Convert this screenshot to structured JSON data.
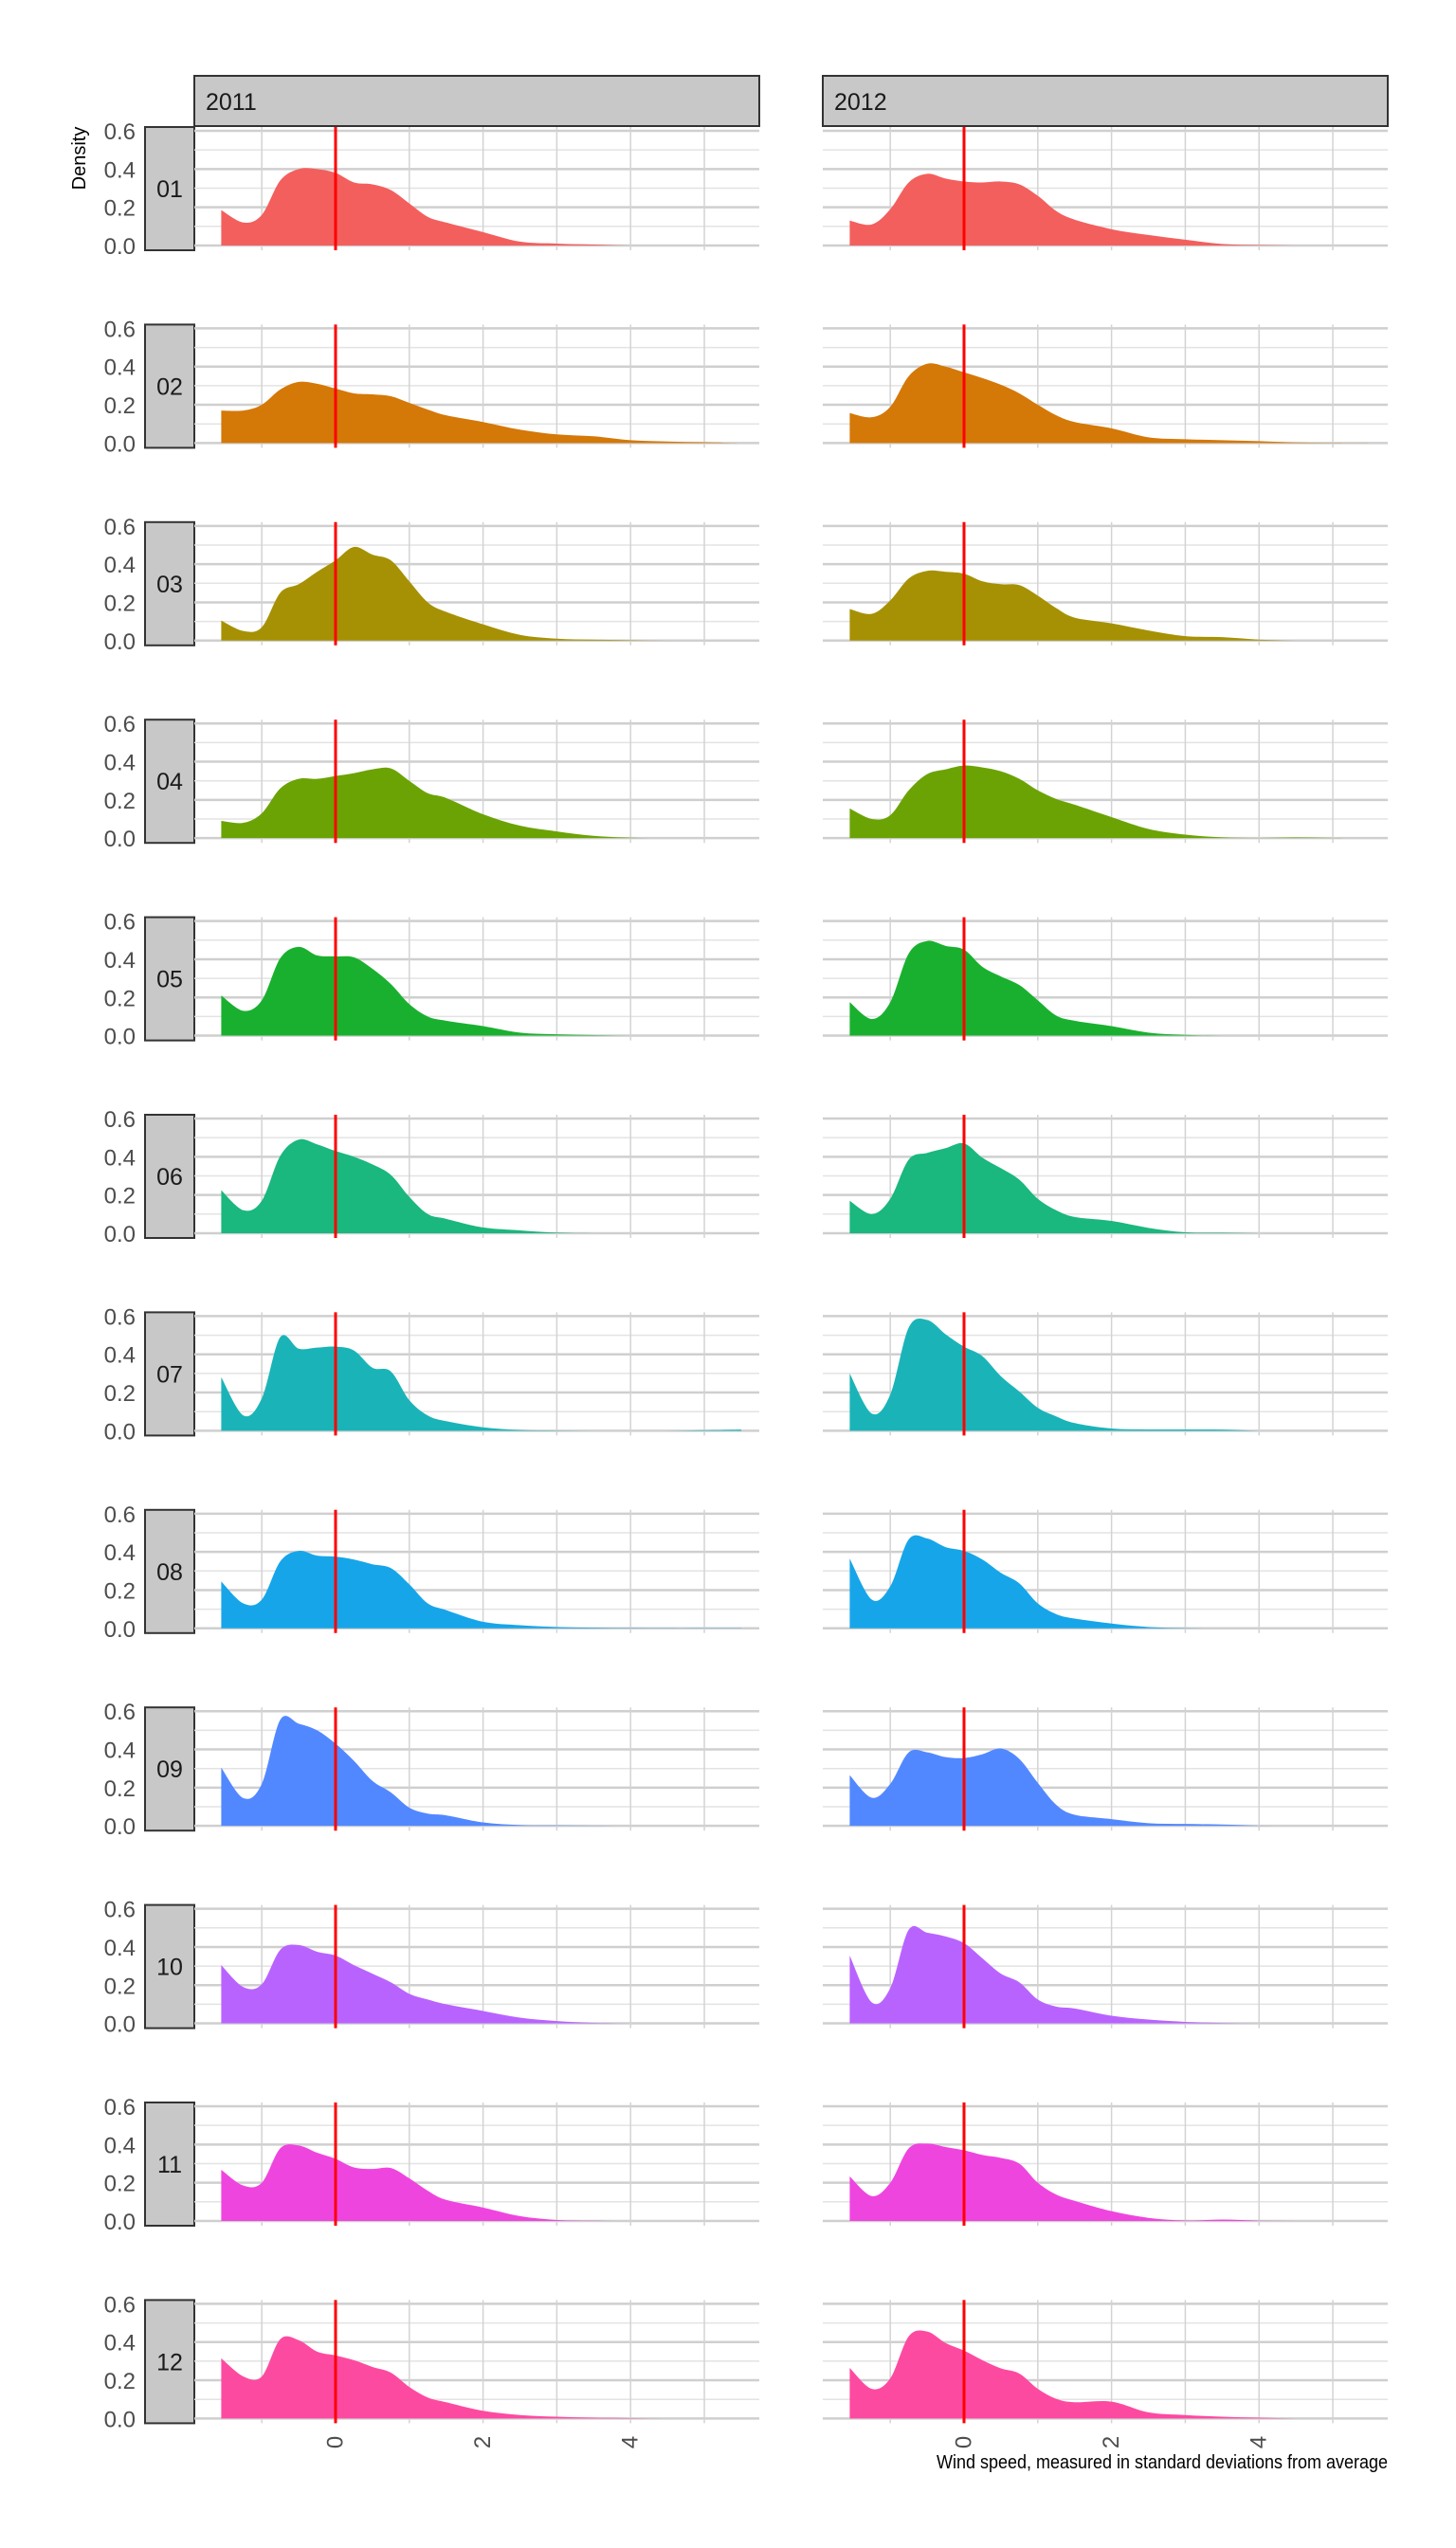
{
  "chart_data": {
    "type": "area",
    "title": "",
    "xlabel": "Wind speed, measured in standard deviations from average",
    "ylabel": "Density",
    "facet_cols": [
      "2011",
      "2012"
    ],
    "facet_rows": [
      "01",
      "02",
      "03",
      "04",
      "05",
      "06",
      "07",
      "08",
      "09",
      "10",
      "11",
      "12"
    ],
    "xlim": [
      -1.915,
      5.745
    ],
    "ylim": [
      -0.025,
      0.62
    ],
    "x_ticks": [
      0,
      2,
      4
    ],
    "x_tick_labels": [
      "0",
      "2",
      "4"
    ],
    "x_minor_gridlines": [
      -1,
      1,
      3,
      5
    ],
    "y_ticks": [
      0,
      0.2,
      0.4,
      0.6
    ],
    "y_tick_labels": [
      "0.0",
      "0.2",
      "0.4",
      "0.6"
    ],
    "y_minor_gridlines": [
      0.1,
      0.3,
      0.5
    ],
    "grid": true,
    "reference_line_x": 0,
    "reference_line_color": "#FF0000",
    "month_colors": [
      "#F35F5D",
      "#D47808",
      "#A69105",
      "#6BA305",
      "#1AB02F",
      "#1AB77E",
      "#1AB4B8",
      "#17A5E9",
      "#5288FF",
      "#B963FF",
      "#EF45DF",
      "#FD4AA1"
    ],
    "x": [
      -1.55,
      -1.25,
      -1,
      -0.75,
      -0.5,
      -0.25,
      0,
      0.25,
      0.5,
      0.75,
      1,
      1.25,
      1.5,
      2,
      2.5,
      3,
      3.5,
      4,
      4.5,
      5,
      5.5
    ],
    "series": [
      {
        "year": "2011",
        "month": "01",
        "values": [
          0.185,
          0.12,
          0.16,
          0.34,
          0.4,
          0.4,
          0.38,
          0.33,
          0.32,
          0.29,
          0.22,
          0.15,
          0.12,
          0.07,
          0.02,
          0.01,
          0.005,
          0,
          0,
          0,
          0
        ]
      },
      {
        "year": "2011",
        "month": "02",
        "values": [
          0.17,
          0.17,
          0.2,
          0.28,
          0.32,
          0.31,
          0.285,
          0.26,
          0.255,
          0.245,
          0.21,
          0.175,
          0.145,
          0.11,
          0.07,
          0.045,
          0.035,
          0.015,
          0.008,
          0.004,
          0
        ]
      },
      {
        "year": "2011",
        "month": "03",
        "values": [
          0.105,
          0.05,
          0.07,
          0.25,
          0.295,
          0.36,
          0.42,
          0.49,
          0.45,
          0.42,
          0.31,
          0.2,
          0.15,
          0.085,
          0.03,
          0.01,
          0.005,
          0.002,
          0,
          0,
          0
        ]
      },
      {
        "year": "2011",
        "month": "04",
        "values": [
          0.09,
          0.08,
          0.13,
          0.26,
          0.31,
          0.31,
          0.325,
          0.34,
          0.36,
          0.365,
          0.3,
          0.235,
          0.21,
          0.125,
          0.065,
          0.035,
          0.012,
          0.002,
          0,
          0,
          0
        ]
      },
      {
        "year": "2011",
        "month": "05",
        "values": [
          0.21,
          0.13,
          0.185,
          0.405,
          0.465,
          0.42,
          0.415,
          0.41,
          0.35,
          0.27,
          0.165,
          0.1,
          0.078,
          0.05,
          0.016,
          0.007,
          0.003,
          0,
          0,
          0,
          0
        ]
      },
      {
        "year": "2011",
        "month": "06",
        "values": [
          0.225,
          0.12,
          0.17,
          0.405,
          0.49,
          0.465,
          0.43,
          0.4,
          0.36,
          0.305,
          0.19,
          0.1,
          0.075,
          0.03,
          0.015,
          0.003,
          0,
          0,
          0,
          0,
          0
        ]
      },
      {
        "year": "2011",
        "month": "07",
        "values": [
          0.28,
          0.08,
          0.17,
          0.49,
          0.43,
          0.435,
          0.44,
          0.42,
          0.33,
          0.31,
          0.16,
          0.08,
          0.05,
          0.018,
          0.004,
          0.001,
          0,
          0,
          0,
          0.003,
          0.006
        ]
      },
      {
        "year": "2011",
        "month": "08",
        "values": [
          0.245,
          0.13,
          0.15,
          0.35,
          0.405,
          0.38,
          0.375,
          0.36,
          0.335,
          0.315,
          0.23,
          0.13,
          0.095,
          0.034,
          0.016,
          0.007,
          0.003,
          0.002,
          0.001,
          0.001,
          0.001
        ]
      },
      {
        "year": "2011",
        "month": "09",
        "values": [
          0.305,
          0.145,
          0.22,
          0.555,
          0.535,
          0.5,
          0.43,
          0.34,
          0.235,
          0.175,
          0.095,
          0.064,
          0.055,
          0.018,
          0.004,
          0.002,
          0.001,
          0,
          0,
          0,
          0
        ]
      },
      {
        "year": "2011",
        "month": "10",
        "values": [
          0.305,
          0.19,
          0.205,
          0.385,
          0.41,
          0.375,
          0.355,
          0.305,
          0.26,
          0.215,
          0.155,
          0.125,
          0.1,
          0.065,
          0.03,
          0.012,
          0.003,
          0,
          0,
          0,
          0
        ]
      },
      {
        "year": "2011",
        "month": "11",
        "values": [
          0.268,
          0.185,
          0.2,
          0.38,
          0.395,
          0.357,
          0.325,
          0.28,
          0.272,
          0.277,
          0.223,
          0.158,
          0.11,
          0.07,
          0.025,
          0.005,
          0.001,
          0,
          0,
          0,
          0
        ]
      },
      {
        "year": "2011",
        "month": "12",
        "values": [
          0.315,
          0.22,
          0.22,
          0.415,
          0.41,
          0.35,
          0.33,
          0.305,
          0.27,
          0.24,
          0.165,
          0.11,
          0.085,
          0.04,
          0.018,
          0.009,
          0.004,
          0.002,
          0,
          0,
          0
        ]
      },
      {
        "year": "2012",
        "month": "01",
        "values": [
          0.13,
          0.11,
          0.19,
          0.33,
          0.375,
          0.35,
          0.335,
          0.33,
          0.335,
          0.32,
          0.26,
          0.18,
          0.135,
          0.085,
          0.055,
          0.03,
          0.008,
          0.002,
          0,
          0,
          0
        ]
      },
      {
        "year": "2012",
        "month": "02",
        "values": [
          0.157,
          0.135,
          0.19,
          0.35,
          0.415,
          0.4,
          0.37,
          0.34,
          0.305,
          0.26,
          0.2,
          0.145,
          0.11,
          0.077,
          0.03,
          0.02,
          0.015,
          0.01,
          0.003,
          0.001,
          0
        ]
      },
      {
        "year": "2012",
        "month": "03",
        "values": [
          0.165,
          0.14,
          0.21,
          0.325,
          0.365,
          0.36,
          0.35,
          0.31,
          0.295,
          0.29,
          0.235,
          0.17,
          0.12,
          0.09,
          0.053,
          0.023,
          0.018,
          0.005,
          0,
          0,
          0
        ]
      },
      {
        "year": "2012",
        "month": "04",
        "values": [
          0.155,
          0.1,
          0.12,
          0.25,
          0.335,
          0.36,
          0.38,
          0.37,
          0.35,
          0.31,
          0.25,
          0.205,
          0.175,
          0.11,
          0.048,
          0.018,
          0.004,
          0.001,
          0.003,
          0.001,
          0
        ]
      },
      {
        "year": "2012",
        "month": "05",
        "values": [
          0.175,
          0.087,
          0.175,
          0.43,
          0.495,
          0.47,
          0.45,
          0.36,
          0.31,
          0.265,
          0.185,
          0.105,
          0.078,
          0.05,
          0.016,
          0.004,
          0,
          0,
          0,
          0,
          0
        ]
      },
      {
        "year": "2012",
        "month": "06",
        "values": [
          0.17,
          0.1,
          0.18,
          0.385,
          0.42,
          0.445,
          0.47,
          0.395,
          0.34,
          0.28,
          0.18,
          0.12,
          0.085,
          0.064,
          0.028,
          0.005,
          0.002,
          0,
          0,
          0,
          0
        ]
      },
      {
        "year": "2012",
        "month": "07",
        "values": [
          0.3,
          0.09,
          0.19,
          0.54,
          0.58,
          0.505,
          0.44,
          0.39,
          0.285,
          0.205,
          0.12,
          0.075,
          0.04,
          0.012,
          0.007,
          0.007,
          0.006,
          0,
          0,
          0,
          0
        ]
      },
      {
        "year": "2012",
        "month": "08",
        "values": [
          0.365,
          0.15,
          0.22,
          0.465,
          0.47,
          0.425,
          0.405,
          0.36,
          0.29,
          0.235,
          0.13,
          0.074,
          0.051,
          0.025,
          0.007,
          0.001,
          0,
          0,
          0,
          0,
          0
        ]
      },
      {
        "year": "2012",
        "month": "09",
        "values": [
          0.265,
          0.147,
          0.22,
          0.385,
          0.385,
          0.36,
          0.355,
          0.375,
          0.405,
          0.35,
          0.225,
          0.11,
          0.058,
          0.035,
          0.014,
          0.01,
          0.007,
          0.001,
          0,
          0,
          0
        ]
      },
      {
        "year": "2012",
        "month": "10",
        "values": [
          0.355,
          0.11,
          0.185,
          0.49,
          0.475,
          0.455,
          0.42,
          0.34,
          0.26,
          0.215,
          0.125,
          0.088,
          0.078,
          0.04,
          0.02,
          0.008,
          0.002,
          0,
          0,
          0,
          0
        ]
      },
      {
        "year": "2012",
        "month": "11",
        "values": [
          0.233,
          0.13,
          0.2,
          0.38,
          0.405,
          0.387,
          0.37,
          0.345,
          0.33,
          0.3,
          0.2,
          0.138,
          0.105,
          0.051,
          0.016,
          0.002,
          0.007,
          0.001,
          0,
          0,
          0
        ]
      },
      {
        "year": "2012",
        "month": "12",
        "values": [
          0.265,
          0.155,
          0.21,
          0.43,
          0.455,
          0.395,
          0.355,
          0.305,
          0.262,
          0.235,
          0.155,
          0.103,
          0.085,
          0.088,
          0.032,
          0.018,
          0.009,
          0.004,
          0,
          0,
          0
        ]
      }
    ]
  }
}
